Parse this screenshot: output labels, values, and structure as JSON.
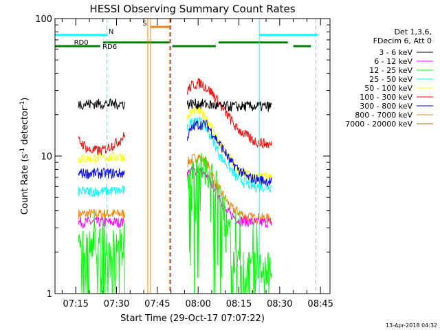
{
  "chart_data": {
    "type": "line",
    "title": "HESSI Observing Summary Count Rates",
    "xlabel": "Start Time (29-Oct-17 07:07:22)",
    "ylabel": "Count Rate (s⁻¹ detector⁻¹)",
    "ylabel_parts": [
      "Count Rate (s",
      "-1",
      " detector",
      "-1",
      ")"
    ],
    "yscale": "log",
    "ylim": [
      1,
      100
    ],
    "xlim": [
      "07:07:22",
      "08:48:30"
    ],
    "x_ticks": [
      "07:15",
      "07:30",
      "07:45",
      "08:00",
      "08:15",
      "08:30",
      "08:45"
    ],
    "y_ticks": [
      "1",
      "10",
      "100"
    ],
    "grid": false,
    "legend_position": "right",
    "legend_header": [
      "Det 1,3,6,",
      "FDecim 6, Att 0"
    ],
    "footer_date": "13-Apr-2018 04:32",
    "data_segments": [
      [
        "07:16",
        "07:33"
      ],
      [
        "07:56",
        "08:27"
      ]
    ],
    "series": [
      {
        "name": "3 - 6 keV",
        "color": "#000000",
        "x": [
          "07:16",
          "07:33",
          "07:56",
          "08:02",
          "08:08",
          "08:14",
          "08:20",
          "08:27"
        ],
        "y": [
          24,
          24,
          24,
          24,
          23,
          23,
          23,
          23
        ]
      },
      {
        "name": "6 - 12 keV",
        "color": "#ff00ff",
        "x": [
          "07:16",
          "07:33",
          "07:56",
          "08:00",
          "08:06",
          "08:10",
          "08:15",
          "08:20",
          "08:27"
        ],
        "y": [
          3.3,
          3.3,
          7.5,
          8.0,
          6.0,
          4.0,
          3.4,
          3.3,
          3.3
        ]
      },
      {
        "name": "12 - 25 keV",
        "color": "#00ff00",
        "x": [
          "07:16",
          "07:33",
          "07:56",
          "08:00",
          "08:05",
          "08:10",
          "08:13",
          "08:20",
          "08:27"
        ],
        "y": [
          2.4,
          2.4,
          7.5,
          9.0,
          7.5,
          4.0,
          1.8,
          1.6,
          1.5
        ]
      },
      {
        "name": "25 - 50 keV",
        "color": "#00ffff",
        "x": [
          "07:16",
          "07:33",
          "07:56",
          "07:59",
          "08:03",
          "08:08",
          "08:14",
          "08:20",
          "08:27"
        ],
        "y": [
          5.5,
          5.6,
          16,
          19,
          16,
          10,
          7,
          6,
          6
        ]
      },
      {
        "name": "50 - 100 keV",
        "color": "#ffff00",
        "x": [
          "07:16",
          "07:33",
          "07:56",
          "07:59",
          "08:03",
          "08:08",
          "08:14",
          "08:20",
          "08:27"
        ],
        "y": [
          9.5,
          10,
          19,
          22,
          19,
          12,
          8,
          7,
          7
        ]
      },
      {
        "name": "100 - 300 keV",
        "color": "#ff0000",
        "x": [
          "07:16",
          "07:20",
          "07:25",
          "07:30",
          "07:33",
          "07:56",
          "07:58",
          "08:01",
          "08:05",
          "08:09",
          "08:14",
          "08:20",
          "08:27"
        ],
        "y": [
          13,
          11,
          11,
          12.5,
          14,
          30,
          33,
          34,
          29,
          22,
          16,
          13,
          12
        ]
      },
      {
        "name": "300 - 800 keV",
        "color": "#0000ff",
        "x": [
          "07:16",
          "07:33",
          "07:56",
          "07:59",
          "08:03",
          "08:07",
          "08:12",
          "08:18",
          "08:27"
        ],
        "y": [
          7.5,
          7.5,
          14,
          17,
          17,
          13,
          9,
          7,
          6.5
        ]
      },
      {
        "name": "800 - 7000 keV",
        "color": "#ff8000",
        "x": [
          "07:16",
          "07:33",
          "07:56",
          "08:00",
          "08:03",
          "08:07",
          "08:12",
          "08:18",
          "08:27"
        ],
        "y": [
          3.8,
          3.8,
          9,
          10,
          9,
          6,
          4.2,
          3.6,
          3.5
        ]
      },
      {
        "name": "7000 - 20000 keV",
        "color": "#aa7700",
        "x": [],
        "y": []
      }
    ],
    "vertical_lines": [
      {
        "time": "07:07:22",
        "color": "#00ffff",
        "style": "solid"
      },
      {
        "time": "07:26:30",
        "color": "#00ffff",
        "style": "dashed"
      },
      {
        "time": "07:41:30",
        "color": "#ff8000",
        "style": "solid"
      },
      {
        "time": "07:42:30",
        "color": "#ff8000",
        "style": "solid"
      },
      {
        "time": "07:49:30",
        "color": "#ff8000",
        "style": "dashed"
      },
      {
        "time": "07:49:50",
        "color": "#0000ff",
        "style": "dashed"
      },
      {
        "time": "08:22:30",
        "color": "#00ffff",
        "style": "solid"
      },
      {
        "time": "08:43:20",
        "color": "#00ffff",
        "style": "dashed"
      }
    ],
    "flag_bars": [
      {
        "label": "N",
        "color": "#00ffff",
        "y": 76,
        "segments": [
          [
            "07:07:22",
            "07:26:30"
          ],
          [
            "08:22:30",
            "08:44:00"
          ]
        ]
      },
      {
        "label": "S",
        "color": "#ff8000",
        "y": 87,
        "segments": [
          [
            "07:42:30",
            "07:49:30"
          ]
        ]
      },
      {
        "label": "RD0",
        "color": "#008000",
        "y": 63,
        "segments": [
          [
            "07:07:22",
            "07:24:00"
          ],
          [
            "07:50:30",
            "08:06:30"
          ],
          [
            "08:35:00",
            "08:41:30"
          ]
        ]
      },
      {
        "label": "RD6",
        "color": "#008000",
        "y": 67,
        "segments": [
          [
            "07:25:00",
            "07:49:30"
          ],
          [
            "08:07:30",
            "08:33:00"
          ]
        ]
      }
    ]
  }
}
